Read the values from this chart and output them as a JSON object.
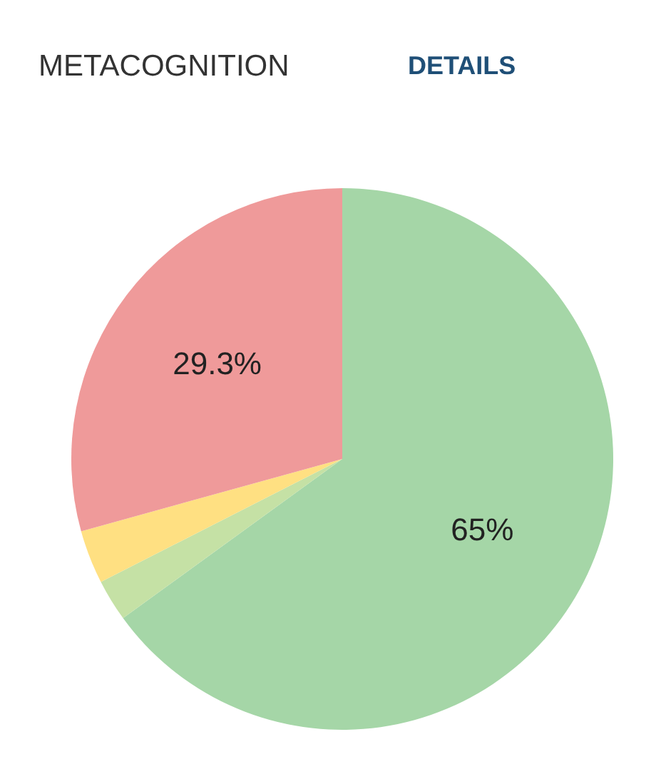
{
  "chart_data": {
    "type": "pie",
    "title": "METACOGNITION",
    "annotations": [
      "DETAILS"
    ],
    "categories": [
      null,
      null,
      null,
      null
    ],
    "values": [
      65,
      2.5,
      3.2,
      29.3
    ],
    "colors": [
      "#a5d6a7",
      "#c5e1a5",
      "#ffe082",
      "#ef9a9a"
    ],
    "value_labels": [
      "65%",
      null,
      null,
      "29.3%"
    ]
  }
}
